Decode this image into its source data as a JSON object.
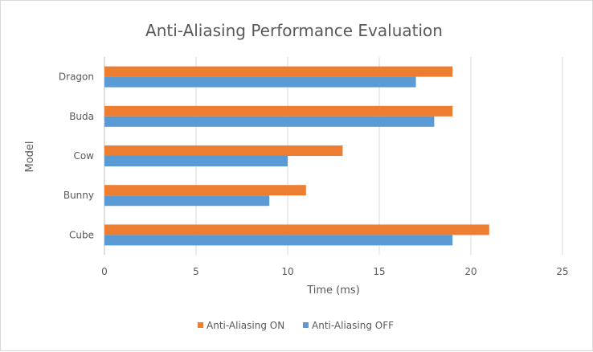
{
  "chart_data": {
    "type": "bar",
    "orientation": "horizontal",
    "title": "Anti-Aliasing Performance Evaluation",
    "xlabel": "Time (ms)",
    "ylabel": "Model",
    "categories": [
      "Dragon",
      "Buda",
      "Cow",
      "Bunny",
      "Cube"
    ],
    "series": [
      {
        "name": "Anti-Aliasing ON",
        "color": "#ed7d31",
        "values": [
          19,
          19,
          13,
          11,
          21
        ]
      },
      {
        "name": "Anti-Aliasing OFF",
        "color": "#5b9bd5",
        "values": [
          17,
          18,
          10,
          9,
          19
        ]
      }
    ],
    "xlim": [
      0,
      25
    ],
    "xticks": [
      "0",
      "5",
      "10",
      "15",
      "20",
      "25"
    ],
    "grid": "vertical",
    "legend_position": "bottom"
  }
}
